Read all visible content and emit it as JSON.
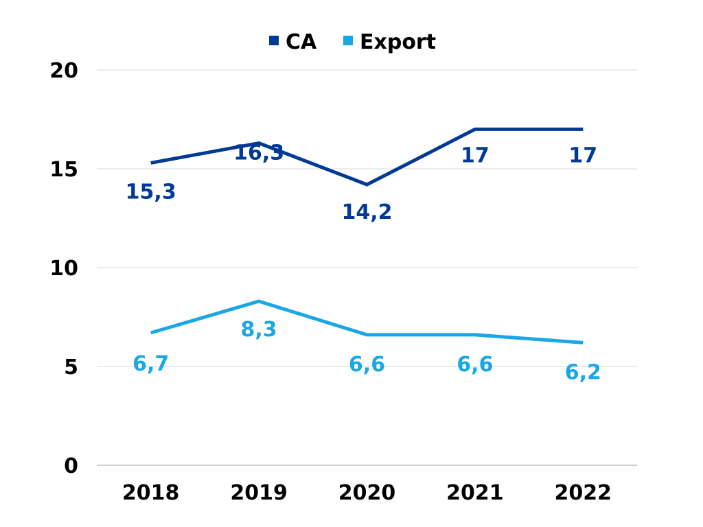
{
  "chart_data": {
    "type": "line",
    "categories": [
      "2018",
      "2019",
      "2020",
      "2021",
      "2022"
    ],
    "series": [
      {
        "name": "CA",
        "values": [
          15.3,
          16.3,
          14.2,
          17,
          17
        ],
        "labels": [
          "15,3",
          "16,3",
          "14,2",
          "17",
          "17"
        ],
        "color": "#003a96"
      },
      {
        "name": "Export",
        "values": [
          6.7,
          8.3,
          6.6,
          6.6,
          6.2
        ],
        "labels": [
          "6,7",
          "8,3",
          "6,6",
          "6,6",
          "6,2"
        ],
        "color": "#1aa7e6"
      }
    ],
    "ylim": [
      0,
      20
    ],
    "yticks": [
      0,
      5,
      10,
      15,
      20
    ],
    "ytick_labels": [
      "0",
      "5",
      "10",
      "15",
      "20"
    ],
    "grid": true,
    "legend_position": "top-center",
    "title": "",
    "xlabel": "",
    "ylabel": ""
  }
}
